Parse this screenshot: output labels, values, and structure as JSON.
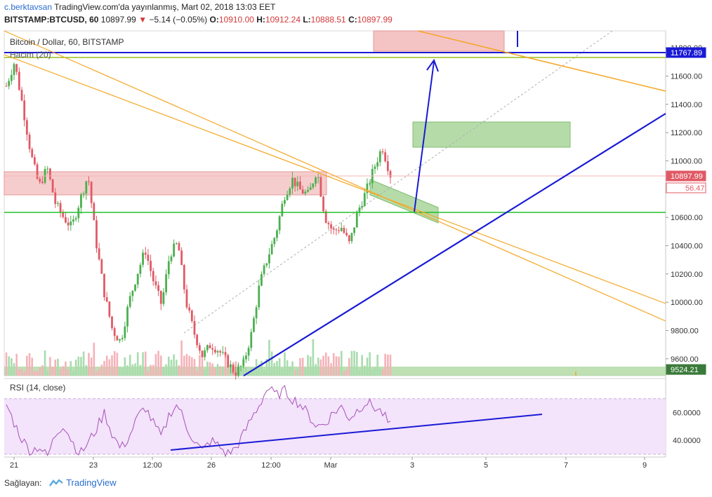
{
  "header": {
    "user": "c.berktavsan",
    "published_text": "TradingView.com'da yayınlanmış, Mart 02, 2018 13:03 EET",
    "symbol": "BITSTAMP:BTCUSD, 60",
    "last_price": "10897.99",
    "change_arrow": "▼",
    "change": "−5.14 (−0.05%)",
    "open_label": "O:",
    "open": "10910.00",
    "high_label": "H:",
    "high": "10912.24",
    "low_label": "L:",
    "low": "10888.51",
    "close_label": "C:",
    "close": "10897.99"
  },
  "legend": {
    "series": "Bitcoin / Dollar, 60, BITSTAMP",
    "volume": "Hacim (20)",
    "rsi": "RSI (14, close)"
  },
  "footer": {
    "shared_by": "Sağlayan:",
    "brand": "TradingView"
  },
  "colors": {
    "up": "#4caf50",
    "down": "#e05a66",
    "trend_blue": "#1a1ad6",
    "trend_orange": "#f5a623",
    "support_green": "#22c02a",
    "zone_red": "#f2b8b8",
    "zone_green": "#a8d59a",
    "rsi_band": "#f3e3fb",
    "rsi_line": "#a653b6"
  },
  "chart_data": {
    "type": "candlestick",
    "title": "Bitcoin / Dollar, 60, BITSTAMP",
    "x_tick_labels": [
      "21",
      "23",
      "12:00",
      "26",
      "12:00",
      "Mar",
      "3",
      "5",
      "7",
      "9"
    ],
    "y_tick_labels": [
      "11800.00",
      "11600.00",
      "11400.00",
      "11200.00",
      "11000.00",
      "10800.00",
      "10600.00",
      "10400.00",
      "10200.00",
      "10000.00",
      "9800.00",
      "9600.00"
    ],
    "ylim": [
      9480,
      11920
    ],
    "price_tags": [
      {
        "label": "11767.89",
        "value": 11767.89,
        "color": "#1a1ad6"
      },
      {
        "label": "10897.99",
        "value": 10897.99,
        "color": "#e05a66"
      },
      {
        "label": "56.47",
        "value": 10835,
        "color": "#e05a66"
      },
      {
        "label": "9524.21",
        "value": 9524.21,
        "color": "#3a7a3a"
      }
    ],
    "closes_approx": [
      11530,
      11700,
      11390,
      11050,
      10820,
      10950,
      10700,
      10600,
      10530,
      10720,
      10900,
      10420,
      10060,
      9800,
      9720,
      10000,
      10200,
      10370,
      10150,
      9980,
      10340,
      10420,
      10000,
      9780,
      9620,
      9700,
      9660,
      9580,
      9500,
      9560,
      9780,
      10130,
      10320,
      10490,
      10750,
      10870,
      10790,
      10760,
      10940,
      10600,
      10500,
      10530,
      10410,
      10640,
      10780,
      10950,
      11100,
      10900
    ],
    "rsi": {
      "label": "RSI (14, close)",
      "levels": [
        "60.0000",
        "40.0000"
      ],
      "ylim": [
        28,
        82
      ],
      "values_approx": [
        66,
        52,
        40,
        32,
        36,
        28,
        44,
        52,
        40,
        30,
        38,
        48,
        60,
        44,
        34,
        42,
        56,
        64,
        52,
        42,
        60,
        66,
        50,
        40,
        32,
        40,
        36,
        30,
        34,
        44,
        56,
        66,
        78,
        72,
        76,
        70,
        66,
        58,
        50,
        52,
        60,
        64,
        56,
        62,
        68,
        64,
        60,
        50
      ]
    }
  }
}
